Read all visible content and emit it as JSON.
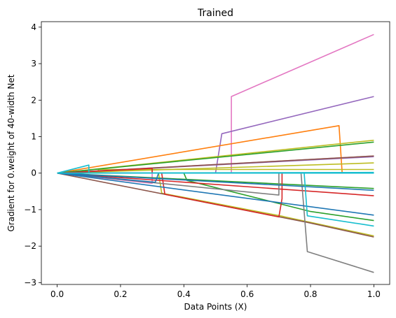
{
  "chart_data": {
    "type": "line",
    "title": "Trained",
    "xlabel": "Data Points (X)",
    "ylabel": "Gradient for 0.weight of 40-width Net",
    "xlim": [
      -0.05,
      1.05
    ],
    "ylim": [
      -3.05,
      4.15
    ],
    "xticks": [
      0.0,
      0.2,
      0.4,
      0.6,
      0.8,
      1.0
    ],
    "xtick_labels": [
      "0.0",
      "0.2",
      "0.4",
      "0.6",
      "0.8",
      "1.0"
    ],
    "yticks": [
      -3,
      -2,
      -1,
      0,
      1,
      2,
      3,
      4
    ],
    "ytick_labels": [
      "−3",
      "−2",
      "−1",
      "0",
      "1",
      "2",
      "3",
      "4"
    ],
    "grid": false,
    "legend": "none",
    "series": [
      {
        "color": "#e377c2",
        "x": [
          0,
          0.55,
          0.55,
          1.0
        ],
        "y": [
          0,
          0,
          2.1,
          3.8
        ]
      },
      {
        "color": "#e377c2",
        "x": [
          0,
          1.0
        ],
        "y": [
          0,
          0.47
        ]
      },
      {
        "color": "#e377c2",
        "x": [
          0,
          0.3,
          0.3,
          1.0
        ],
        "y": [
          0,
          -0.28,
          0,
          0
        ]
      },
      {
        "color": "#9467bd",
        "x": [
          0,
          0.5,
          0.52,
          1.0
        ],
        "y": [
          0,
          0,
          1.08,
          2.1
        ]
      },
      {
        "color": "#9467bd",
        "x": [
          0,
          1.0
        ],
        "y": [
          0,
          0.45
        ]
      },
      {
        "color": "#ff7f0e",
        "x": [
          0,
          0.89,
          0.9,
          0.9,
          1.0
        ],
        "y": [
          0,
          1.3,
          0,
          0,
          0
        ]
      },
      {
        "color": "#ff7f0e",
        "x": [
          0,
          0.3,
          0.3,
          1.0
        ],
        "y": [
          0,
          0.12,
          0,
          0
        ]
      },
      {
        "color": "#bcbd22",
        "x": [
          0,
          1.0
        ],
        "y": [
          0,
          0.9
        ]
      },
      {
        "color": "#bcbd22",
        "x": [
          0,
          1.0
        ],
        "y": [
          0,
          0.28
        ]
      },
      {
        "color": "#bcbd22",
        "x": [
          0,
          0.32,
          0.33,
          0.71,
          0.72,
          1.0
        ],
        "y": [
          0,
          0,
          -0.55,
          -1.18,
          -1.2,
          -1.72
        ]
      },
      {
        "color": "#bcbd22",
        "x": [
          0,
          0.13,
          0.13,
          1.0
        ],
        "y": [
          0,
          0.05,
          0.1,
          0.1
        ]
      },
      {
        "color": "#8c564b",
        "x": [
          0,
          1.0
        ],
        "y": [
          0,
          0.47
        ]
      },
      {
        "color": "#8c564b",
        "x": [
          0,
          0.79,
          0.79,
          1.0
        ],
        "y": [
          0,
          -1.35,
          -1.35,
          -1.75
        ]
      },
      {
        "color": "#2ca02c",
        "x": [
          0,
          1.0
        ],
        "y": [
          0,
          0.85
        ]
      },
      {
        "color": "#2ca02c",
        "x": [
          0,
          1.0
        ],
        "y": [
          0,
          -0.42
        ]
      },
      {
        "color": "#2ca02c",
        "x": [
          0,
          0.4,
          0.41,
          0.8,
          1.0
        ],
        "y": [
          0,
          0,
          -0.2,
          -1.05,
          -1.3
        ]
      },
      {
        "color": "#d62728",
        "x": [
          0,
          0.33,
          0.34,
          0.7,
          0.71,
          0.71,
          1.0
        ],
        "y": [
          0,
          0,
          -0.58,
          -1.2,
          -0.7,
          0,
          0
        ]
      },
      {
        "color": "#d62728",
        "x": [
          0,
          1.0
        ],
        "y": [
          0,
          -0.62
        ]
      },
      {
        "color": "#d62728",
        "x": [
          0,
          0.3,
          0.3,
          1.0
        ],
        "y": [
          0,
          0.13,
          0,
          0
        ]
      },
      {
        "color": "#7f7f7f",
        "x": [
          0,
          0.77,
          0.79,
          1.0
        ],
        "y": [
          0,
          0,
          -2.15,
          -2.72
        ]
      },
      {
        "color": "#7f7f7f",
        "x": [
          0,
          0.7,
          0.7,
          1.0
        ],
        "y": [
          0,
          -0.6,
          0,
          0
        ]
      },
      {
        "color": "#1f77b4",
        "x": [
          0,
          1.0
        ],
        "y": [
          0,
          -1.15
        ]
      },
      {
        "color": "#1f77b4",
        "x": [
          0,
          1.0
        ],
        "y": [
          0,
          -0.47
        ]
      },
      {
        "color": "#1f77b4",
        "x": [
          0,
          0.31,
          0.32,
          1.0
        ],
        "y": [
          0,
          -0.25,
          0,
          0
        ]
      },
      {
        "color": "#17becf",
        "x": [
          0,
          0.1,
          0.1,
          1.0
        ],
        "y": [
          0,
          0.22,
          0,
          0
        ]
      },
      {
        "color": "#17becf",
        "x": [
          0,
          0.78,
          0.79,
          1.0
        ],
        "y": [
          0,
          0,
          -1.17,
          -1.45
        ]
      },
      {
        "color": "#17becf",
        "x": [
          0,
          1.0
        ],
        "y": [
          0,
          0.02
        ]
      }
    ]
  }
}
